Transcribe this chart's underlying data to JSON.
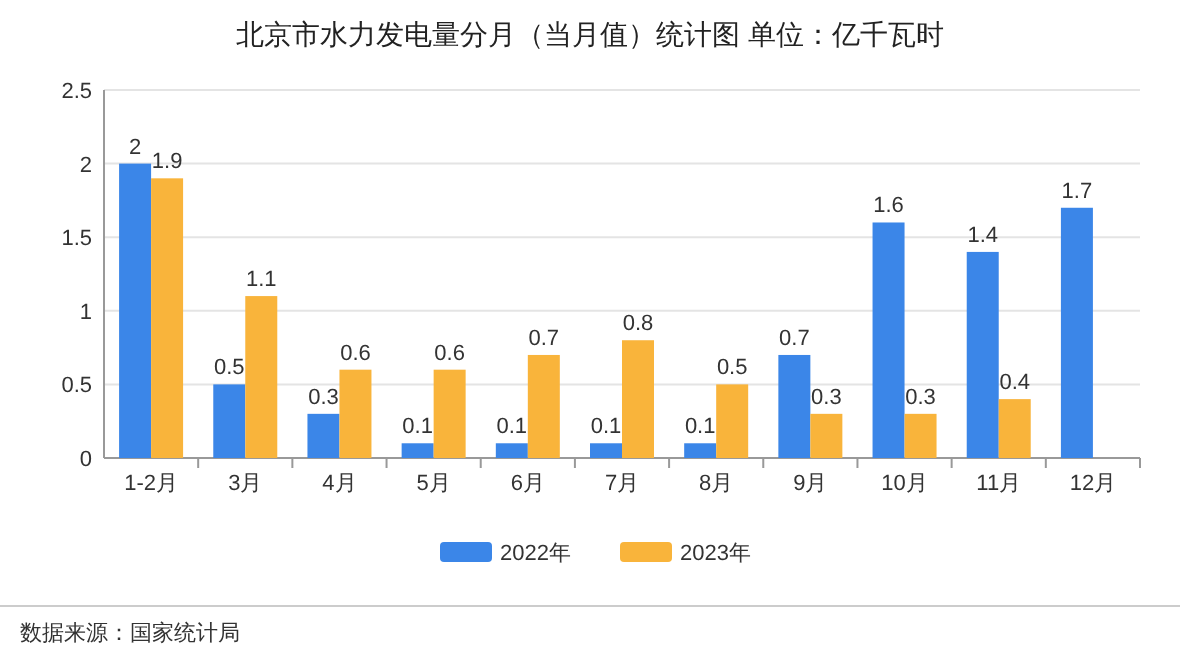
{
  "chart_data": {
    "type": "bar",
    "title": "北京市水力发电量分月（当月值）统计图 单位：亿千瓦时",
    "categories": [
      "1-2月",
      "3月",
      "4月",
      "5月",
      "6月",
      "7月",
      "8月",
      "9月",
      "10月",
      "11月",
      "12月"
    ],
    "series": [
      {
        "name": "2022年",
        "color": "#3b86e8",
        "values": [
          2,
          0.5,
          0.3,
          0.1,
          0.1,
          0.1,
          0.1,
          0.7,
          1.6,
          1.4,
          1.7
        ]
      },
      {
        "name": "2023年",
        "color": "#f9b43b",
        "values": [
          1.9,
          1.1,
          0.6,
          0.6,
          0.7,
          0.8,
          0.5,
          0.3,
          0.3,
          0.4,
          null
        ]
      }
    ],
    "ylim": [
      0,
      2.5
    ],
    "yticks": [
      0,
      0.5,
      1,
      1.5,
      2,
      2.5
    ],
    "grid": "y",
    "legend": "bottom",
    "data_labels": true,
    "annotations": [
      "数据来源：国家统计局"
    ]
  }
}
